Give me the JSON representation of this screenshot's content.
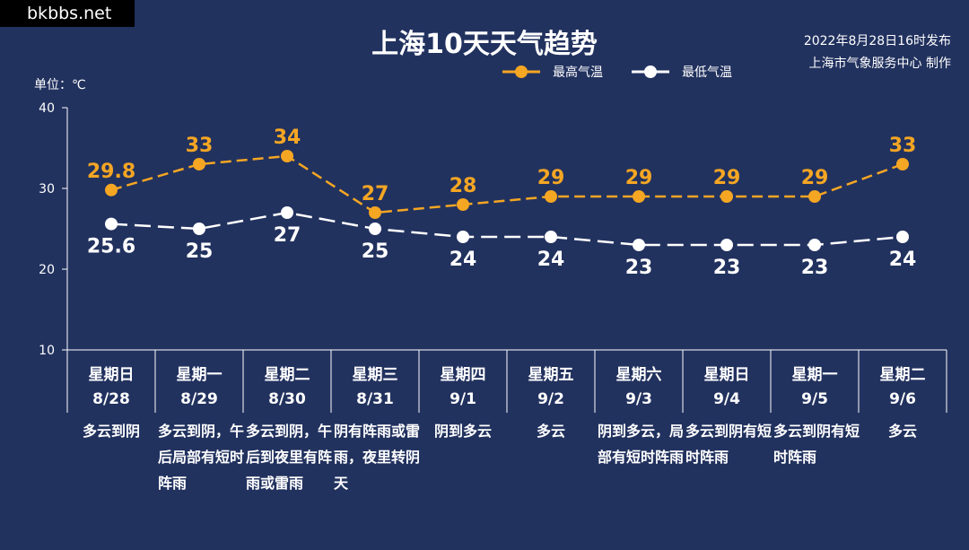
{
  "watermark": "bkbbs.net",
  "header": {
    "title": "上海10天天气趋势",
    "publish_time": "2022年8月28日16时发布",
    "publisher": "上海市气象服务中心 制作"
  },
  "unit_label": "单位：℃",
  "colors": {
    "background": "#22325f",
    "high": "#f5a623",
    "low": "#ffffff",
    "axis": "#ffffff"
  },
  "chart_data": {
    "type": "line",
    "title": "上海10天天气趋势",
    "ylabel": "单位：℃",
    "ylim": [
      10,
      40
    ],
    "yticks": [
      10,
      20,
      30,
      40
    ],
    "legend_position": "top-right",
    "categories": [
      {
        "weekday": "星期日",
        "date": "8/28",
        "weather": "多云到阴"
      },
      {
        "weekday": "星期一",
        "date": "8/29",
        "weather": "多云到阴，午后局部有短时阵雨"
      },
      {
        "weekday": "星期二",
        "date": "8/30",
        "weather": "多云到阴，午后到夜里有阵雨或雷雨"
      },
      {
        "weekday": "星期三",
        "date": "8/31",
        "weather": "阴有阵雨或雷雨，夜里转阴天"
      },
      {
        "weekday": "星期四",
        "date": "9/1",
        "weather": "阴到多云"
      },
      {
        "weekday": "星期五",
        "date": "9/2",
        "weather": "多云"
      },
      {
        "weekday": "星期六",
        "date": "9/3",
        "weather": "阴到多云，局部有短时阵雨"
      },
      {
        "weekday": "星期日",
        "date": "9/4",
        "weather": "多云到阴有短时阵雨"
      },
      {
        "weekday": "星期一",
        "date": "9/5",
        "weather": "多云到阴有短时阵雨"
      },
      {
        "weekday": "星期二",
        "date": "9/6",
        "weather": "多云"
      }
    ],
    "series": [
      {
        "name": "最高气温",
        "labels": [
          "29.8",
          "33",
          "34",
          "27",
          "28",
          "29",
          "29",
          "29",
          "29",
          "33"
        ],
        "values": [
          29.8,
          33,
          34,
          27,
          28,
          29,
          29,
          29,
          29,
          33
        ]
      },
      {
        "name": "最低气温",
        "labels": [
          "25.6",
          "25",
          "27",
          "25",
          "24",
          "24",
          "23",
          "23",
          "23",
          "24"
        ],
        "values": [
          25.6,
          25,
          27,
          25,
          24,
          24,
          23,
          23,
          23,
          24
        ]
      }
    ]
  }
}
